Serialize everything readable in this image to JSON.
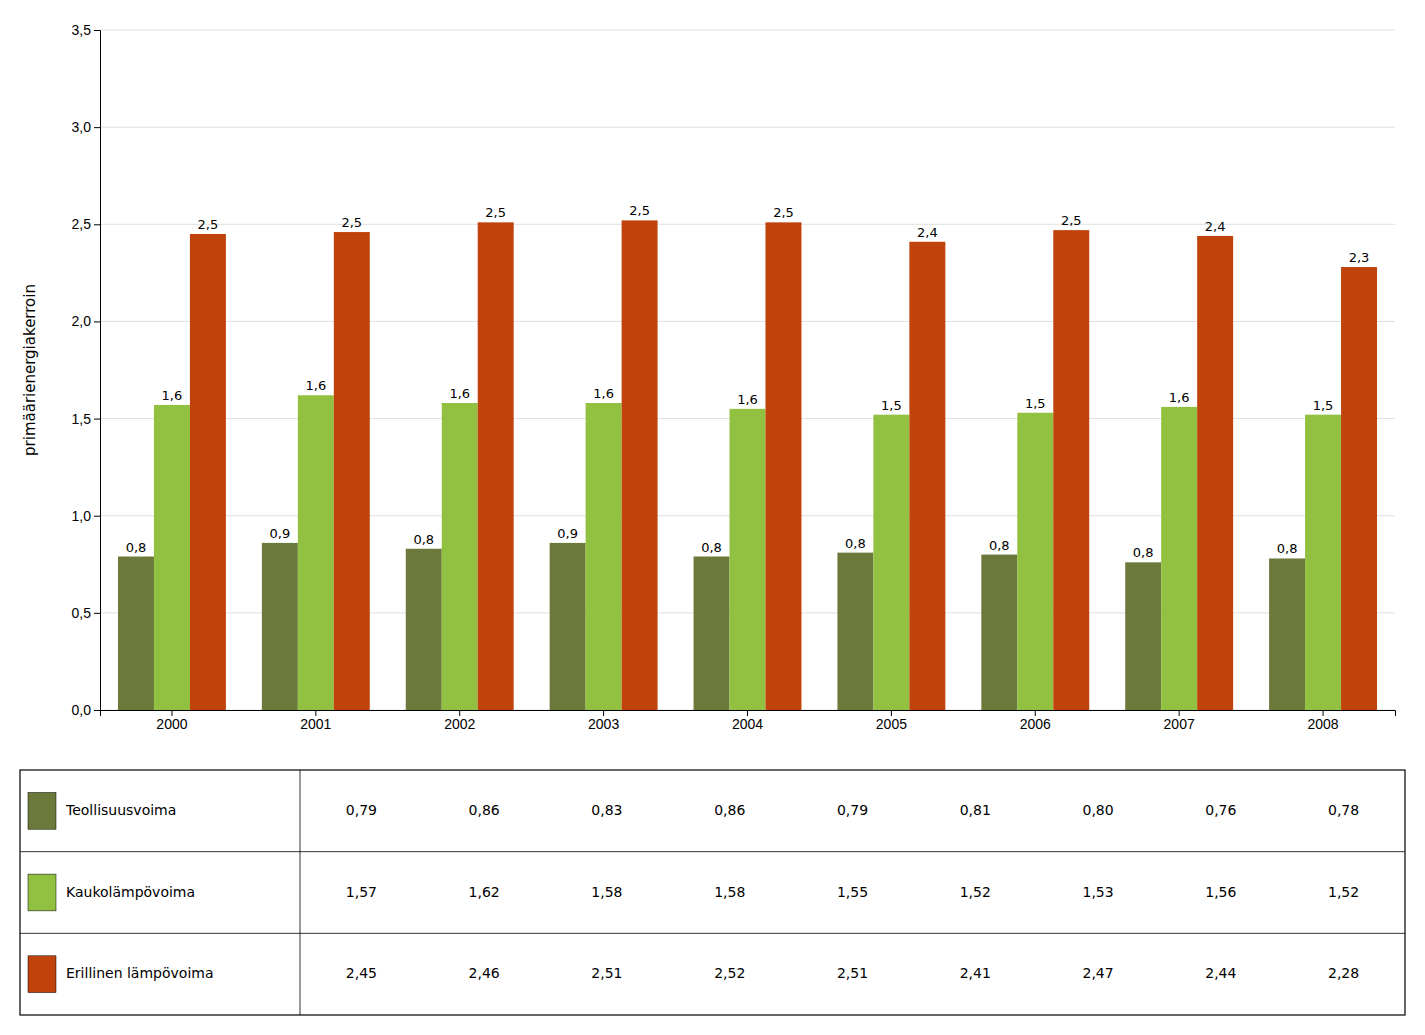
{
  "chart_data": {
    "type": "bar",
    "y_label": "primäärienergiakerroin",
    "categories": [
      "2000",
      "2001",
      "2002",
      "2003",
      "2004",
      "2005",
      "2006",
      "2007",
      "2008"
    ],
    "series": [
      {
        "name": "Teollisuusvoima",
        "color": "#6b7a3a",
        "values": [
          0.79,
          0.86,
          0.83,
          0.86,
          0.79,
          0.81,
          0.8,
          0.76,
          0.78
        ],
        "value_labels": [
          "0,8",
          "0,9",
          "0,8",
          "0,9",
          "0,8",
          "0,8",
          "0,8",
          "0,8",
          "0,8"
        ],
        "table_labels": [
          "0,79",
          "0,86",
          "0,83",
          "0,86",
          "0,79",
          "0,81",
          "0,80",
          "0,76",
          "0,78"
        ]
      },
      {
        "name": "Kaukolämpövoima",
        "color": "#92c040",
        "values": [
          1.57,
          1.62,
          1.58,
          1.58,
          1.55,
          1.52,
          1.53,
          1.56,
          1.52
        ],
        "value_labels": [
          "1,6",
          "1,6",
          "1,6",
          "1,6",
          "1,6",
          "1,5",
          "1,5",
          "1,6",
          "1,5"
        ],
        "table_labels": [
          "1,57",
          "1,62",
          "1,58",
          "1,58",
          "1,55",
          "1,52",
          "1,53",
          "1,56",
          "1,52"
        ]
      },
      {
        "name": "Erillinen lämpövoima",
        "color": "#c0430c",
        "values": [
          2.45,
          2.46,
          2.51,
          2.52,
          2.51,
          2.41,
          2.47,
          2.44,
          2.28
        ],
        "value_labels": [
          "2,5",
          "2,5",
          "2,5",
          "2,5",
          "2,5",
          "2,4",
          "2,5",
          "2,4",
          "2,3"
        ],
        "table_labels": [
          "2,45",
          "2,46",
          "2,51",
          "2,52",
          "2,51",
          "2,41",
          "2,47",
          "2,44",
          "2,28"
        ]
      }
    ],
    "ylim": [
      0,
      3.5
    ],
    "yticks": [
      {
        "value": 0.0,
        "label": "0,0"
      },
      {
        "value": 0.5,
        "label": "0,5"
      },
      {
        "value": 1.0,
        "label": "1,0"
      },
      {
        "value": 1.5,
        "label": "1,5"
      },
      {
        "value": 2.0,
        "label": "2,0"
      },
      {
        "value": 2.5,
        "label": "2,5"
      },
      {
        "value": 3.0,
        "label": "3,0"
      },
      {
        "value": 3.5,
        "label": "3,5"
      }
    ],
    "grid": true,
    "data_labels": true
  }
}
